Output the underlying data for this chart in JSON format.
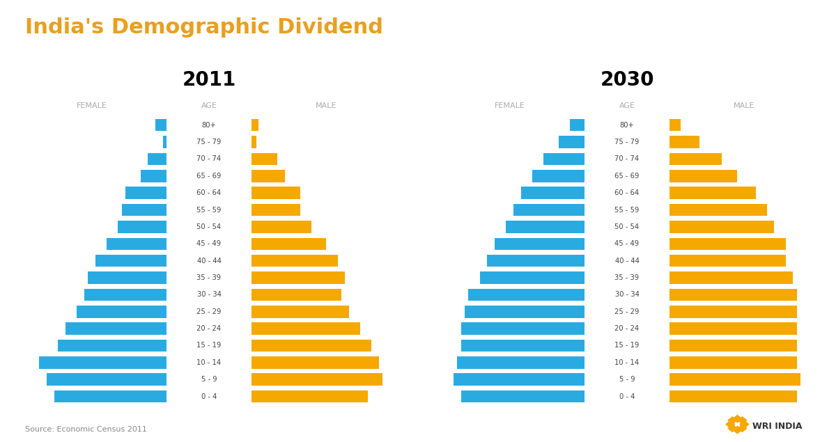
{
  "title": "India's Demographic Dividend",
  "title_color": "#E8A020",
  "source_text": "Source: Economic Census 2011",
  "year1": "2011",
  "year2": "2030",
  "female_color": "#29ABE2",
  "male_color": "#F5A800",
  "age_groups": [
    "0 - 4",
    "5 - 9",
    "10 - 14",
    "15 - 19",
    "20 - 24",
    "25 - 29",
    "30 - 34",
    "35 - 39",
    "40 - 44",
    "45 - 49",
    "50 - 54",
    "55 - 59",
    "60 - 64",
    "65 - 69",
    "70 - 74",
    "75 - 79",
    "80+"
  ],
  "y2011_female": [
    15.0,
    16.0,
    17.0,
    14.5,
    13.5,
    12.0,
    11.0,
    10.5,
    9.5,
    8.0,
    6.5,
    6.0,
    5.5,
    3.5,
    2.5,
    0.5,
    1.5
  ],
  "y2011_male": [
    15.5,
    17.5,
    17.0,
    16.0,
    14.5,
    13.0,
    12.0,
    12.5,
    11.5,
    10.0,
    8.0,
    6.5,
    6.5,
    4.5,
    3.5,
    0.7,
    1.0
  ],
  "y2030_female": [
    16.5,
    17.5,
    17.0,
    16.5,
    16.5,
    16.0,
    15.5,
    14.0,
    13.0,
    12.0,
    10.5,
    9.5,
    8.5,
    7.0,
    5.5,
    3.5,
    2.0
  ],
  "y2030_male": [
    17.0,
    17.5,
    17.0,
    17.0,
    17.0,
    17.0,
    17.0,
    16.5,
    15.5,
    15.5,
    14.0,
    13.0,
    11.5,
    9.0,
    7.0,
    4.0,
    1.5
  ],
  "bg_color": "#FFFFFF",
  "bar_height": 0.72,
  "age_label_color": "#444444",
  "header_color": "#AAAAAA",
  "year_fontsize": 20,
  "title_fontsize": 22,
  "max_val": 20
}
